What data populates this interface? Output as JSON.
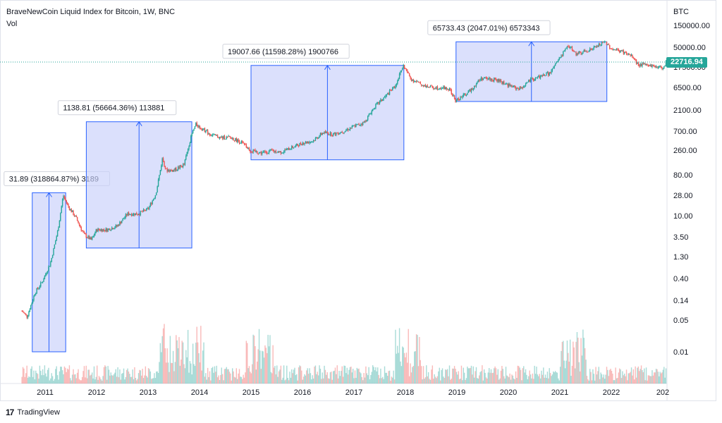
{
  "header": {
    "title": "BraveNewCoin Liquid Index for Bitcoin, 1W, BNC",
    "volume_label": "Vol",
    "unit": "BTC",
    "last_price": "22716.94"
  },
  "footer": {
    "logo_text": "TradingView",
    "logo_mark": "17"
  },
  "colors": {
    "up": "#26a69a",
    "down": "#ef5350",
    "range_fill": "#c7d0fb",
    "range_line": "#2962ff",
    "price_line": "#26a69a"
  },
  "chart_data": {
    "type": "line",
    "scale": "log",
    "title": "BraveNewCoin Liquid Index for Bitcoin, 1W, BNC",
    "y_ticks": [
      0.01,
      0.05,
      0.14,
      0.4,
      1.3,
      3.5,
      10.0,
      28.0,
      80.0,
      260.0,
      700.0,
      2100.0,
      6500.0,
      17500.0,
      50000.0,
      150000.0
    ],
    "y_tick_labels": [
      "0.01",
      "0.05",
      "0.14",
      "0.40",
      "1.30",
      "3.50",
      "10.00",
      "28.00",
      "80.00",
      "260.00",
      "700.00",
      "2100.00",
      "6500.00",
      "17500.00",
      "50000.00",
      "150000.00"
    ],
    "x_ticks": [
      "2011",
      "2012",
      "2013",
      "2014",
      "2015",
      "2016",
      "2017",
      "2018",
      "2019",
      "2020",
      "2021",
      "2022",
      "202"
    ],
    "series": [
      {
        "x": [
          2010.55,
          2010.65,
          2010.8,
          2010.95,
          2011.1,
          2011.25,
          2011.35,
          2011.45,
          2011.6,
          2011.75,
          2011.9,
          2012.0,
          2012.2,
          2012.4,
          2012.6,
          2012.8,
          2013.0,
          2013.15,
          2013.28,
          2013.35,
          2013.5,
          2013.7,
          2013.85,
          2013.93,
          2014.05,
          2014.2,
          2014.4,
          2014.6,
          2014.8,
          2015.0,
          2015.2,
          2015.4,
          2015.6,
          2015.8,
          2016.0,
          2016.2,
          2016.4,
          2016.6,
          2016.8,
          2017.0,
          2017.2,
          2017.4,
          2017.6,
          2017.8,
          2017.96,
          2018.1,
          2018.3,
          2018.5,
          2018.7,
          2018.85,
          2018.96,
          2019.2,
          2019.45,
          2019.6,
          2019.8,
          2020.0,
          2020.2,
          2020.4,
          2020.6,
          2020.8,
          2021.0,
          2021.15,
          2021.3,
          2021.45,
          2021.6,
          2021.8,
          2021.87,
          2022.0,
          2022.2,
          2022.4,
          2022.5,
          2022.7,
          2022.85,
          2023.0,
          2023.05
        ],
        "y": [
          0.08,
          0.06,
          0.2,
          0.35,
          0.9,
          5,
          28,
          16,
          9,
          4,
          3,
          5,
          5,
          6,
          11,
          11,
          14,
          30,
          180,
          100,
          100,
          130,
          600,
          1000,
          800,
          600,
          500,
          500,
          400,
          250,
          230,
          250,
          240,
          300,
          380,
          420,
          650,
          600,
          700,
          900,
          1100,
          2500,
          4000,
          7000,
          19000,
          10000,
          7500,
          6500,
          6500,
          5800,
          3300,
          5000,
          10000,
          10000,
          9000,
          7200,
          6000,
          9000,
          11000,
          13000,
          30000,
          55000,
          35000,
          40000,
          45000,
          60000,
          65000,
          45000,
          40000,
          30000,
          20000,
          19500,
          18000,
          17000,
          22716.94
        ]
      }
    ],
    "annotations": [
      {
        "label": "31.89 (318864.87%) 3189",
        "x_start": 2010.75,
        "x_end": 2011.4,
        "y_low": 0.01,
        "y_high": 31.89
      },
      {
        "label": "1138.81 (56664.36%) 113881",
        "x_start": 2011.8,
        "x_end": 2013.85,
        "y_low": 2.0,
        "y_high": 1138.81
      },
      {
        "label": "19007.66 (11598.28%) 1900766",
        "x_start": 2015.0,
        "x_end": 2017.97,
        "y_low": 163.89,
        "y_high": 19007.66
      },
      {
        "label": "65733.43 (2047.01%) 6573343",
        "x_start": 2018.97,
        "x_end": 2021.9,
        "y_low": 3211.2,
        "y_high": 65733.43
      }
    ],
    "last_price": 22716.94
  }
}
